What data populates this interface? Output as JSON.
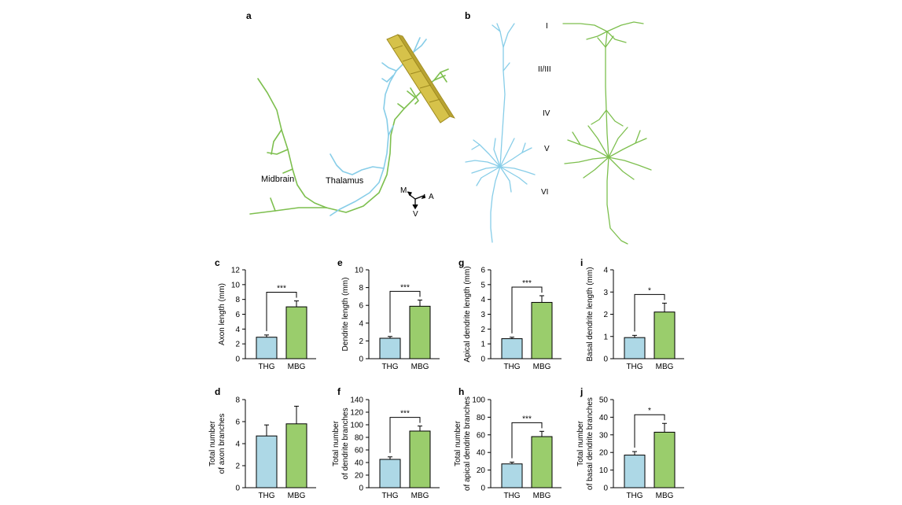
{
  "panel_letters": [
    "a",
    "b",
    "c",
    "d",
    "e",
    "f",
    "g",
    "h",
    "i",
    "j"
  ],
  "panel_a": {
    "labels": [
      "Midbrain",
      "Thalamus"
    ],
    "orientation": [
      "M",
      "A",
      "V"
    ]
  },
  "panel_b": {
    "layers": [
      "I",
      "II/III",
      "IV",
      "V",
      "VI"
    ]
  },
  "colors": {
    "thg": "#add8e6",
    "mbg": "#9acd6c",
    "thg_trace": "#87cde8",
    "mbg_trace": "#7dbf4e",
    "slice": "#d6c24a"
  },
  "chart_data": [
    {
      "panel": "c",
      "type": "bar",
      "categories": [
        "THG",
        "MBG"
      ],
      "values": [
        2.9,
        7.0
      ],
      "errors": [
        0.3,
        0.8
      ],
      "ylabel": "Axon length (mm)",
      "ylim": [
        0,
        12
      ],
      "yticks": [
        "0",
        "2",
        "4",
        "6",
        "8",
        "10",
        "12"
      ],
      "significance": "***"
    },
    {
      "panel": "d",
      "type": "bar",
      "categories": [
        "THG",
        "MBG"
      ],
      "values": [
        4.7,
        5.8
      ],
      "errors": [
        1.0,
        1.6
      ],
      "ylabel": [
        "Total number",
        "of axon branches"
      ],
      "ylim": [
        0,
        8
      ],
      "yticks": [
        "0",
        "2",
        "4",
        "6",
        "8"
      ],
      "significance": ""
    },
    {
      "panel": "e",
      "type": "bar",
      "categories": [
        "THG",
        "MBG"
      ],
      "values": [
        2.3,
        5.9
      ],
      "errors": [
        0.2,
        0.7
      ],
      "ylabel": "Dendrite length (mm)",
      "ylim": [
        0,
        10
      ],
      "yticks": [
        "0",
        "2",
        "4",
        "6",
        "8",
        "10"
      ],
      "significance": "***"
    },
    {
      "panel": "f",
      "type": "bar",
      "categories": [
        "THG",
        "MBG"
      ],
      "values": [
        45,
        90
      ],
      "errors": [
        4,
        8
      ],
      "ylabel": [
        "Total number",
        "of dendrite branches"
      ],
      "ylim": [
        0,
        140
      ],
      "yticks": [
        "0",
        "20",
        "40",
        "60",
        "80",
        "100",
        "120",
        "140"
      ],
      "significance": "***"
    },
    {
      "panel": "g",
      "type": "bar",
      "categories": [
        "THG",
        "MBG"
      ],
      "values": [
        1.35,
        3.8
      ],
      "errors": [
        0.1,
        0.45
      ],
      "ylabel": "Apical dendrite length (mm)",
      "ylim": [
        0,
        6
      ],
      "yticks": [
        "0",
        "1",
        "2",
        "3",
        "4",
        "5",
        "6"
      ],
      "significance": "***"
    },
    {
      "panel": "h",
      "type": "bar",
      "categories": [
        "THG",
        "MBG"
      ],
      "values": [
        27,
        58
      ],
      "errors": [
        2,
        6
      ],
      "ylabel": [
        "Total number",
        "of apical dendrite branches"
      ],
      "ylim": [
        0,
        100
      ],
      "yticks": [
        "0",
        "20",
        "40",
        "60",
        "80",
        "100"
      ],
      "significance": "***"
    },
    {
      "panel": "i",
      "type": "bar",
      "categories": [
        "THG",
        "MBG"
      ],
      "values": [
        0.95,
        2.1
      ],
      "errors": [
        0.1,
        0.4
      ],
      "ylabel": "Basal dendrite length (mm)",
      "ylim": [
        0,
        4
      ],
      "yticks": [
        "0",
        "1",
        "2",
        "3",
        "4"
      ],
      "significance": "*"
    },
    {
      "panel": "j",
      "type": "bar",
      "categories": [
        "THG",
        "MBG"
      ],
      "values": [
        18.5,
        31.5
      ],
      "errors": [
        2,
        5
      ],
      "ylabel": [
        "Total number",
        "of basal dendrite branches"
      ],
      "ylim": [
        0,
        50
      ],
      "yticks": [
        "0",
        "10",
        "20",
        "30",
        "40",
        "50"
      ],
      "significance": "*"
    }
  ]
}
